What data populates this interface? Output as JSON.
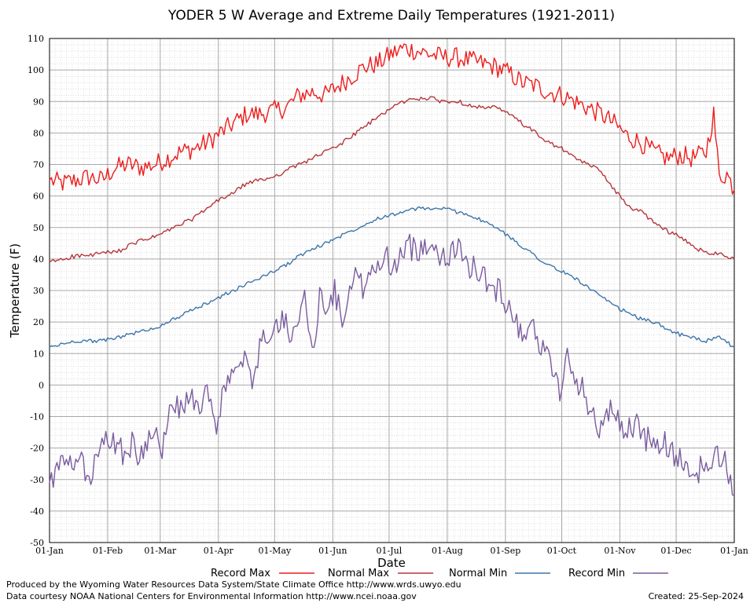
{
  "chart_data": {
    "type": "line",
    "title": "YODER 5 W Average and Extreme Daily Temperatures (1921-2011)",
    "xlabel": "Date",
    "ylabel": "Temperature (F)",
    "ylim": [
      -50,
      110
    ],
    "yticks": [
      "110",
      "100",
      "90",
      "80",
      "70",
      "60",
      "50",
      "40",
      "30",
      "20",
      "10",
      "0",
      "-10",
      "-20",
      "-30",
      "-40",
      "-50"
    ],
    "xtick_labels": [
      "01-Jan",
      "01-Feb",
      "01-Mar",
      "01-Apr",
      "01-May",
      "01-Jun",
      "01-Jul",
      "01-Aug",
      "01-Sep",
      "01-Oct",
      "01-Nov",
      "01-Dec",
      "01-Jan"
    ],
    "xtick_days": [
      0,
      31,
      59,
      90,
      120,
      151,
      181,
      212,
      243,
      273,
      304,
      334,
      365
    ],
    "grid": true,
    "legend_position": "bottom",
    "series": [
      {
        "name": "Record Max",
        "color": "#ee1c1c",
        "x": [
          0,
          7,
          14,
          21,
          28,
          35,
          42,
          49,
          56,
          63,
          70,
          77,
          84,
          91,
          98,
          105,
          112,
          119,
          126,
          133,
          140,
          147,
          154,
          161,
          168,
          175,
          182,
          189,
          196,
          203,
          210,
          217,
          224,
          231,
          238,
          245,
          252,
          259,
          266,
          273,
          280,
          287,
          294,
          301,
          308,
          315,
          322,
          329,
          336,
          343,
          350,
          354,
          357,
          361,
          365
        ],
        "values": [
          65,
          64,
          65,
          66,
          65,
          69,
          70,
          69,
          70,
          72,
          74,
          75,
          77,
          80,
          83,
          86,
          86,
          87,
          88,
          92,
          93,
          92,
          95,
          98,
          101,
          102,
          105,
          107,
          106,
          105,
          104,
          104,
          103,
          102,
          101,
          99,
          96,
          95,
          93,
          92,
          90,
          88,
          86,
          83,
          79,
          77,
          74,
          72,
          73,
          72,
          74,
          86,
          66,
          67,
          62
        ]
      },
      {
        "name": "Normal Max",
        "color": "#b5373b",
        "x": [
          0,
          7,
          14,
          21,
          28,
          35,
          42,
          49,
          56,
          63,
          70,
          77,
          84,
          91,
          98,
          105,
          112,
          119,
          126,
          133,
          140,
          147,
          154,
          161,
          168,
          175,
          182,
          189,
          196,
          203,
          210,
          217,
          224,
          231,
          238,
          245,
          252,
          259,
          266,
          273,
          280,
          287,
          294,
          301,
          308,
          315,
          322,
          329,
          336,
          343,
          350,
          357,
          365
        ],
        "values": [
          39,
          40,
          41,
          41,
          42,
          42,
          44,
          46,
          47,
          49,
          51,
          53,
          56,
          59,
          61,
          64,
          65,
          66,
          68,
          70,
          72,
          74,
          76,
          79,
          82,
          85,
          88,
          90,
          91,
          91,
          90,
          90,
          89,
          88,
          88,
          86,
          83,
          80,
          77,
          75,
          72,
          70,
          68,
          62,
          57,
          55,
          52,
          49,
          47,
          44,
          42,
          42,
          40
        ]
      },
      {
        "name": "Normal Min",
        "color": "#3d75a8",
        "x": [
          0,
          7,
          14,
          21,
          28,
          35,
          42,
          49,
          56,
          63,
          70,
          77,
          84,
          91,
          98,
          105,
          112,
          119,
          126,
          133,
          140,
          147,
          154,
          161,
          168,
          175,
          182,
          189,
          196,
          203,
          210,
          217,
          224,
          231,
          238,
          245,
          252,
          259,
          266,
          273,
          280,
          287,
          294,
          301,
          308,
          315,
          322,
          329,
          336,
          343,
          350,
          357,
          365
        ],
        "values": [
          12,
          13,
          14,
          14,
          14,
          15,
          16,
          17,
          18,
          20,
          22,
          24,
          26,
          28,
          30,
          32,
          34,
          36,
          38,
          41,
          43,
          45,
          47,
          49,
          51,
          53,
          54,
          55,
          56,
          56,
          56,
          55,
          54,
          52,
          50,
          47,
          44,
          41,
          38,
          36,
          34,
          31,
          28,
          25,
          23,
          21,
          20,
          18,
          16,
          15,
          14,
          15,
          12
        ]
      },
      {
        "name": "Record Min",
        "color": "#7a5c9e",
        "x": [
          0,
          4,
          8,
          12,
          16,
          20,
          24,
          28,
          32,
          36,
          40,
          44,
          48,
          52,
          56,
          60,
          64,
          68,
          72,
          76,
          80,
          84,
          88,
          92,
          96,
          100,
          104,
          108,
          112,
          116,
          120,
          124,
          128,
          132,
          136,
          140,
          144,
          148,
          152,
          156,
          160,
          164,
          168,
          172,
          176,
          180,
          184,
          188,
          192,
          196,
          200,
          204,
          208,
          212,
          216,
          220,
          224,
          228,
          232,
          236,
          240,
          244,
          248,
          252,
          256,
          260,
          264,
          268,
          272,
          276,
          280,
          284,
          288,
          292,
          296,
          300,
          304,
          308,
          312,
          316,
          320,
          324,
          328,
          332,
          336,
          340,
          344,
          348,
          352,
          356,
          360,
          365
        ],
        "values": [
          -31,
          -28,
          -24,
          -27,
          -22,
          -31,
          -26,
          -20,
          -17,
          -19,
          -22,
          -18,
          -25,
          -17,
          -12,
          -20,
          -10,
          -6,
          -8,
          -2,
          -12,
          0,
          -14,
          -4,
          2,
          4,
          8,
          -1,
          12,
          16,
          18,
          20,
          17,
          22,
          26,
          10,
          28,
          24,
          30,
          20,
          32,
          34,
          30,
          36,
          38,
          40,
          38,
          41,
          44,
          42,
          46,
          44,
          42,
          41,
          43,
          42,
          38,
          36,
          34,
          30,
          30,
          26,
          22,
          16,
          20,
          15,
          10,
          6,
          -2,
          8,
          2,
          0,
          -8,
          -14,
          -10,
          -8,
          -12,
          -14,
          -12,
          -16,
          -18,
          -20,
          -18,
          -22,
          -24,
          -26,
          -30,
          -24,
          -28,
          -22,
          -24,
          -35
        ]
      }
    ]
  },
  "legend": [
    {
      "label": "Record Max",
      "color": "#ee1c1c"
    },
    {
      "label": "Normal Max",
      "color": "#b5373b"
    },
    {
      "label": "Normal Min",
      "color": "#3d75a8"
    },
    {
      "label": "Record Min",
      "color": "#7a5c9e"
    }
  ],
  "footer": {
    "line1": "Produced by the Wyoming Water Resources Data System/State Climate Office http://www.wrds.uwyo.edu",
    "line2": "Data courtesy NOAA National Centers for Environmental Information http://www.ncei.noaa.gov",
    "created": "Created:  25-Sep-2024"
  }
}
